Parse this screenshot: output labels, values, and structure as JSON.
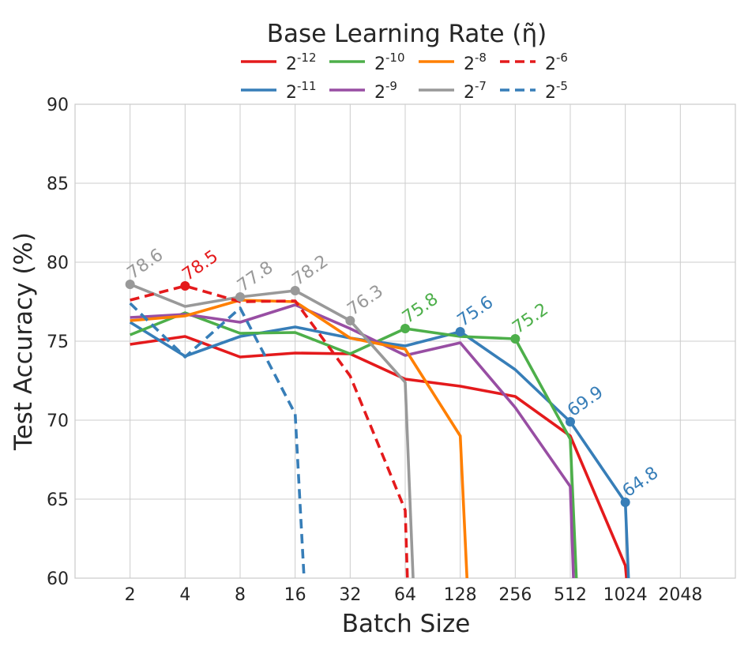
{
  "chart_data": {
    "type": "line",
    "xlabel": "Batch Size",
    "ylabel": "Test Accuracy (%)",
    "x_scale": "log2",
    "x_ticks": [
      "2",
      "4",
      "8",
      "16",
      "32",
      "64",
      "128",
      "256",
      "512",
      "1024",
      "2048"
    ],
    "xlim": [
      1,
      4096
    ],
    "ylim": [
      60,
      90
    ],
    "y_ticks": [
      60,
      65,
      70,
      75,
      80,
      85,
      90
    ],
    "grid": true,
    "legend": {
      "title": "Base Learning Rate (η̃)",
      "placement": "top-center",
      "columns": 4
    },
    "series": [
      {
        "name": "2-12",
        "base": "2",
        "exp": "-12",
        "color": "#e41a1c",
        "dash": "solid",
        "x": [
          2,
          4,
          8,
          16,
          32,
          64,
          128,
          256,
          512,
          1024,
          1050
        ],
        "y": [
          74.8,
          75.3,
          74.0,
          74.25,
          74.2,
          72.6,
          72.15,
          71.5,
          69.0,
          60.8,
          59.5
        ]
      },
      {
        "name": "2-11",
        "base": "2",
        "exp": "-11",
        "color": "#377eb8",
        "dash": "solid",
        "x": [
          2,
          4,
          8,
          16,
          32,
          64,
          128,
          256,
          512,
          1024,
          1070
        ],
        "y": [
          76.2,
          74.05,
          75.3,
          75.9,
          75.2,
          74.7,
          75.6,
          73.2,
          69.9,
          64.8,
          59.5
        ]
      },
      {
        "name": "2-10",
        "base": "2",
        "exp": "-10",
        "color": "#4daf4a",
        "dash": "solid",
        "x": [
          2,
          4,
          8,
          16,
          32,
          64,
          128,
          256,
          512,
          555
        ],
        "y": [
          75.4,
          76.8,
          75.5,
          75.55,
          74.2,
          75.8,
          75.3,
          75.15,
          68.8,
          59.5
        ]
      },
      {
        "name": "2-9",
        "base": "2",
        "exp": "-9",
        "color": "#984ea3",
        "dash": "solid",
        "x": [
          2,
          4,
          8,
          16,
          32,
          64,
          128,
          256,
          512,
          535
        ],
        "y": [
          76.5,
          76.7,
          76.2,
          77.3,
          75.8,
          74.1,
          74.9,
          70.8,
          65.8,
          59.5
        ]
      },
      {
        "name": "2-8",
        "base": "2",
        "exp": "-8",
        "color": "#ff7f00",
        "dash": "solid",
        "x": [
          2,
          4,
          8,
          16,
          32,
          64,
          128,
          140
        ],
        "y": [
          76.3,
          76.6,
          77.6,
          77.5,
          75.2,
          74.5,
          69.0,
          59.5
        ]
      },
      {
        "name": "2-7",
        "base": "2",
        "exp": "-7",
        "color": "#999999",
        "dash": "solid",
        "x": [
          2,
          4,
          8,
          16,
          32,
          64,
          71
        ],
        "y": [
          78.6,
          77.2,
          77.8,
          78.2,
          76.3,
          72.4,
          59.5
        ]
      },
      {
        "name": "2-6",
        "base": "2",
        "exp": "-6",
        "color": "#e41a1c",
        "dash": "dashed",
        "x": [
          2,
          4,
          8,
          16,
          32,
          64,
          66
        ],
        "y": [
          77.6,
          78.5,
          77.5,
          77.55,
          72.8,
          64.3,
          59.5
        ]
      },
      {
        "name": "2-5",
        "base": "2",
        "exp": "-5",
        "color": "#377eb8",
        "dash": "dashed",
        "x": [
          2,
          4,
          8,
          16,
          18
        ],
        "y": [
          77.4,
          74.0,
          77.1,
          70.4,
          59.5
        ]
      }
    ],
    "annotations": [
      {
        "text": "78.6",
        "x": 2,
        "y": 78.6,
        "color": "#999999"
      },
      {
        "text": "78.5",
        "x": 4,
        "y": 78.5,
        "color": "#e41a1c"
      },
      {
        "text": "77.8",
        "x": 8,
        "y": 77.8,
        "color": "#999999"
      },
      {
        "text": "78.2",
        "x": 16,
        "y": 78.2,
        "color": "#999999"
      },
      {
        "text": "76.3",
        "x": 32,
        "y": 76.3,
        "color": "#999999"
      },
      {
        "text": "75.8",
        "x": 64,
        "y": 75.8,
        "color": "#4daf4a"
      },
      {
        "text": "75.6",
        "x": 128,
        "y": 75.6,
        "color": "#377eb8"
      },
      {
        "text": "75.2",
        "x": 256,
        "y": 75.15,
        "color": "#4daf4a"
      },
      {
        "text": "69.9",
        "x": 512,
        "y": 69.9,
        "color": "#377eb8"
      },
      {
        "text": "64.8",
        "x": 1024,
        "y": 64.8,
        "color": "#377eb8"
      }
    ]
  }
}
